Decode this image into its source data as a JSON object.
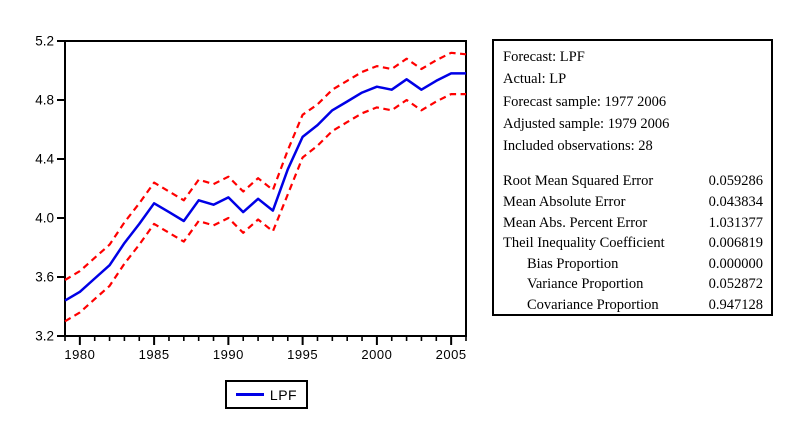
{
  "chart_data": {
    "type": "line",
    "title": "",
    "xlabel": "",
    "ylabel": "",
    "xlim": [
      1979,
      2006
    ],
    "ylim": [
      3.2,
      5.2
    ],
    "grid": false,
    "x_tick_labels": [
      1980,
      1985,
      1990,
      1995,
      2000,
      2005
    ],
    "y_tick_labels": [
      "5.2",
      "4.8",
      "4.4",
      "4.0",
      "3.6",
      "3.2"
    ],
    "x": [
      1979,
      1980,
      1981,
      1982,
      1983,
      1984,
      1985,
      1986,
      1987,
      1988,
      1989,
      1990,
      1991,
      1992,
      1993,
      1994,
      1995,
      1996,
      1997,
      1998,
      1999,
      2000,
      2001,
      2002,
      2003,
      2004,
      2005,
      2006
    ],
    "series": [
      {
        "name": "LPF",
        "style": "solid",
        "color": "#0000e6",
        "values": [
          3.44,
          3.5,
          3.59,
          3.68,
          3.83,
          3.96,
          4.1,
          4.04,
          3.98,
          4.12,
          4.09,
          4.14,
          4.04,
          4.13,
          4.05,
          4.33,
          4.55,
          4.63,
          4.73,
          4.79,
          4.85,
          4.89,
          4.87,
          4.94,
          4.87,
          4.93,
          4.98,
          4.98
        ]
      },
      {
        "name": "upper-2se-band",
        "style": "dashed",
        "color": "#ff0000",
        "values": [
          3.58,
          3.64,
          3.73,
          3.82,
          3.97,
          4.1,
          4.24,
          4.18,
          4.12,
          4.26,
          4.23,
          4.28,
          4.18,
          4.27,
          4.19,
          4.46,
          4.7,
          4.77,
          4.87,
          4.93,
          4.99,
          5.03,
          5.01,
          5.08,
          5.01,
          5.07,
          5.12,
          5.11
        ]
      },
      {
        "name": "lower-2se-band",
        "style": "dashed",
        "color": "#ff0000",
        "values": [
          3.3,
          3.36,
          3.45,
          3.54,
          3.69,
          3.82,
          3.96,
          3.9,
          3.84,
          3.98,
          3.95,
          4.0,
          3.9,
          3.99,
          3.91,
          4.16,
          4.41,
          4.49,
          4.59,
          4.65,
          4.71,
          4.75,
          4.73,
          4.8,
          4.73,
          4.79,
          4.84,
          4.84
        ]
      }
    ],
    "legend": {
      "position": "bottom",
      "label": "LPF"
    }
  },
  "stats_box": {
    "header_lines": [
      "Forecast: LPF",
      "Actual: LP",
      "Forecast sample: 1977 2006",
      "Adjusted sample: 1979 2006",
      "Included observations: 28"
    ],
    "metrics": [
      {
        "label": "Root Mean Squared Error",
        "value": "0.059286",
        "indent": false
      },
      {
        "label": "Mean Absolute Error",
        "value": "0.043834",
        "indent": false
      },
      {
        "label": "Mean Abs. Percent Error",
        "value": "1.031377",
        "indent": false
      },
      {
        "label": "Theil Inequality Coefficient",
        "value": "0.006819",
        "indent": false
      },
      {
        "label": "Bias Proportion",
        "value": "0.000000",
        "indent": true
      },
      {
        "label": "Variance Proportion",
        "value": "0.052872",
        "indent": true
      },
      {
        "label": "Covariance Proportion",
        "value": "0.947128",
        "indent": true
      }
    ]
  },
  "colors": {
    "forecast_line": "#0000e6",
    "band_line": "#ff0000",
    "axis": "#000000",
    "background": "#ffffff"
  }
}
